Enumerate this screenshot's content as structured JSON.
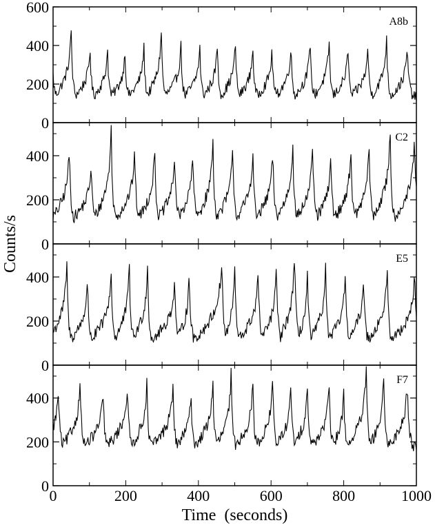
{
  "chart_data": {
    "type": "line",
    "layout": "4 stacked panels, shared x axis",
    "xlabel": "Time  (seconds)",
    "ylabel": "Counts/s",
    "xlim": [
      0,
      1000
    ],
    "x_ticks": [
      "0",
      "200",
      "400",
      "600",
      "800",
      "1000"
    ],
    "grid": false,
    "line_color": "#000000",
    "sample_step_seconds": 2,
    "panels": [
      {
        "label": "A8b",
        "ylim": [
          0,
          600
        ],
        "y_ticks": [
          "0",
          "200",
          "400",
          "600"
        ],
        "series": [
          {
            "quasi_period_s": 54,
            "baseline": 130,
            "peak_times": [
              50,
              102,
              150,
              198,
              250,
              298,
              352,
              404,
              452,
              502,
              550,
              603,
              655,
              708,
              760,
              812,
              867,
              918,
              975
            ],
            "peak_values": [
              480,
              380,
              380,
              370,
              390,
              480,
              400,
              390,
              400,
              410,
              390,
              380,
              400,
              410,
              420,
              380,
              390,
              440,
              380
            ]
          }
        ]
      },
      {
        "label": "C2",
        "ylim": [
          0,
          550
        ],
        "y_ticks": [
          "0",
          "200",
          "400"
        ],
        "series": [
          {
            "quasi_period_s": 55,
            "baseline": 110,
            "peak_times": [
              45,
              105,
              160,
              225,
              280,
              335,
              385,
              440,
              495,
              550,
              605,
              660,
              715,
              765,
              820,
              870,
              928,
              995
            ],
            "peak_values": [
              440,
              360,
              520,
              420,
              430,
              410,
              420,
              470,
              440,
              420,
              420,
              460,
              440,
              400,
              430,
              450,
              510,
              470
            ]
          }
        ]
      },
      {
        "label": "E5",
        "ylim": [
          0,
          550
        ],
        "y_ticks": [
          "0",
          "200",
          "400"
        ],
        "series": [
          {
            "quasi_period_s": 60,
            "baseline": 110,
            "peak_times": [
              38,
              95,
              160,
              210,
              260,
              335,
              375,
              465,
              500,
              565,
              615,
              665,
              700,
              750,
              805,
              855,
              920,
              995
            ],
            "peak_values": [
              460,
              380,
              420,
              450,
              450,
              380,
              430,
              470,
              460,
              420,
              450,
              520,
              420,
              440,
              410,
              410,
              420,
              400
            ]
          }
        ]
      },
      {
        "label": "F7",
        "ylim": [
          0,
          550
        ],
        "y_ticks": [
          "0",
          "200",
          "400"
        ],
        "series": [
          {
            "quasi_period_s": 58,
            "baseline": 175,
            "peak_times": [
              15,
              75,
              138,
              205,
              258,
              330,
              380,
              440,
              490,
              550,
              605,
              655,
              700,
              760,
              800,
              862,
              910,
              975
            ],
            "peak_values": [
              440,
              480,
              420,
              460,
              470,
              450,
              420,
              470,
              510,
              460,
              490,
              460,
              470,
              450,
              430,
              530,
              490,
              460
            ]
          }
        ]
      }
    ]
  }
}
